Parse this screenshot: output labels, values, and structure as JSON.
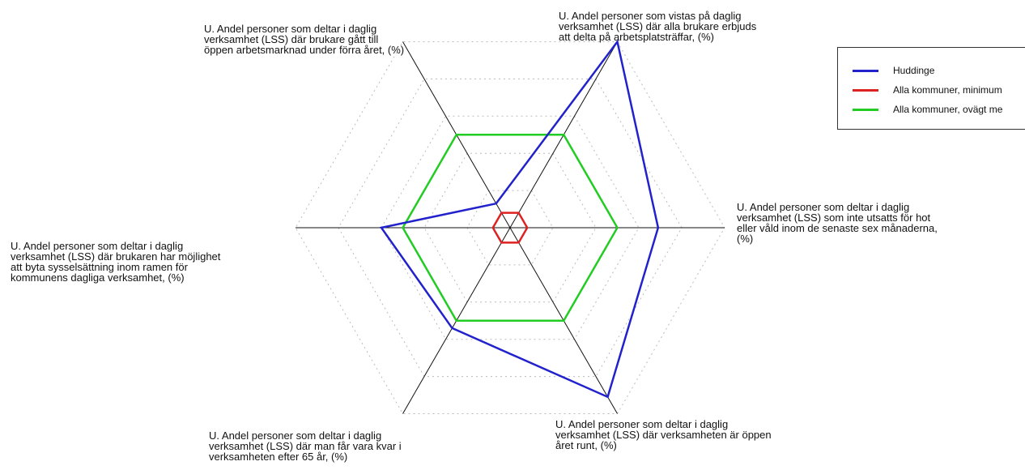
{
  "chart_data": {
    "type": "radar",
    "axes": [
      "U. Andel personer som vistas på daglig verksamhet (LSS) där alla brukare erbjuds att delta på arbetsplatsträffar, (%)",
      "U. Andel personer som deltar i daglig verksamhet (LSS) som inte utsatts för hot eller våld inom de senaste sex månaderna, (%)",
      "U. Andel personer som deltar i daglig verksamhet (LSS) där verksamheten är öppen året runt, (%)",
      "U. Andel personer som deltar i daglig verksamhet (LSS) där man får vara kvar i verksamheten efter 65 år, (%)",
      "U. Andel personer som deltar i daglig verksamhet (LSS) där brukaren har möjlighet att byta sysselsättning inom ramen för kommunens dagliga verksamhet, (%)",
      "U. Andel personer som deltar i daglig verksamhet (LSS) där brukare gått till öppen arbetsmarknad under förra året, (%)"
    ],
    "axis_label_lines": [
      [
        "U. Andel personer som vistas på daglig",
        "verksamhet (LSS) där alla brukare erbjuds",
        "att delta på arbetsplatsträffar, (%)"
      ],
      [
        "U. Andel personer som deltar i daglig",
        "verksamhet (LSS) som inte utsatts för hot",
        "eller våld inom de senaste sex månaderna,",
        "(%)"
      ],
      [
        "U. Andel personer som deltar i daglig",
        "verksamhet (LSS) där verksamheten är öppen",
        "året runt, (%)"
      ],
      [
        "U. Andel personer som deltar i daglig",
        "verksamhet (LSS) där man får vara kvar i",
        "verksamheten efter 65 år, (%)"
      ],
      [
        "U. Andel personer som deltar i daglig",
        "verksamhet (LSS) där brukaren har möjlighet",
        "att byta sysselsättning inom ramen för",
        "kommunens dagliga verksamhet, (%)"
      ],
      [
        "U. Andel personer som deltar i daglig",
        "verksamhet (LSS) där brukare gått till",
        "öppen arbetsmarknad under förra året, (%)"
      ]
    ],
    "series": [
      {
        "name": "Huddinge",
        "color": "#2222cc",
        "values": [
          1.0,
          0.69,
          0.91,
          0.54,
          0.6,
          0.13
        ]
      },
      {
        "name": "Alla kommuner, minimum",
        "color": "#dd2222",
        "values": [
          0.08,
          0.08,
          0.08,
          0.08,
          0.08,
          0.08
        ]
      },
      {
        "name": "Alla kommuner, ovägt me",
        "color": "#22cc22",
        "values": [
          0.5,
          0.5,
          0.5,
          0.5,
          0.5,
          0.5
        ]
      }
    ],
    "rlim": [
      0,
      1
    ],
    "grid_levels": [
      0.2,
      0.4,
      0.6,
      0.8,
      1.0
    ],
    "grid": true,
    "legend_position": "top-right"
  }
}
